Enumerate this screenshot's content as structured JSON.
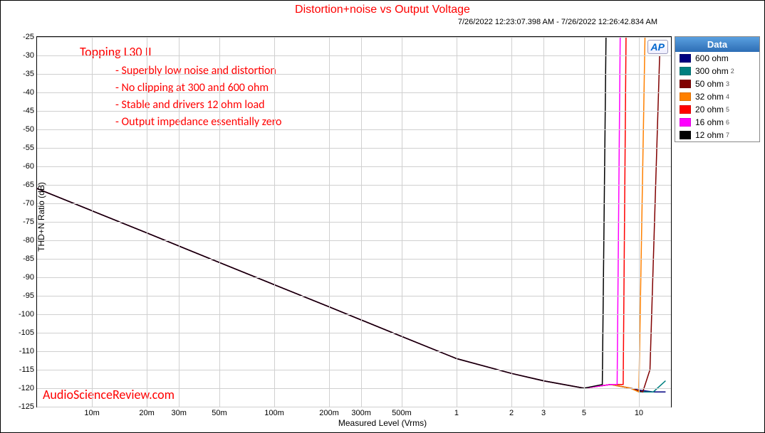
{
  "title": "Distortion+noise vs Output Voltage",
  "timestamp": "7/26/2022 12:23:07.398 AM - 7/26/2022 12:26:42.834 AM",
  "ap_logo": "AP",
  "y_label": "THD+N Ratio (dB)",
  "x_label": "Measured Level (Vrms)",
  "y_min": -125,
  "y_max": -25,
  "y_tick_step": 5,
  "x_min_log": -2.301,
  "x_max_log": 1.176,
  "x_ticks": [
    {
      "v": 0.01,
      "l": "10m"
    },
    {
      "v": 0.02,
      "l": "20m"
    },
    {
      "v": 0.03,
      "l": "30m"
    },
    {
      "v": 0.05,
      "l": "50m"
    },
    {
      "v": 0.1,
      "l": "100m"
    },
    {
      "v": 0.2,
      "l": "200m"
    },
    {
      "v": 0.3,
      "l": "300m"
    },
    {
      "v": 0.5,
      "l": "500m"
    },
    {
      "v": 1,
      "l": "1"
    },
    {
      "v": 2,
      "l": "2"
    },
    {
      "v": 3,
      "l": "3"
    },
    {
      "v": 5,
      "l": "5"
    },
    {
      "v": 10,
      "l": "10"
    }
  ],
  "grid_color": "#d0d0d0",
  "background_color": "#ffffff",
  "axis_color": "#000000",
  "annotation_color": "#ff0000",
  "annotations": {
    "heading": "Topping L30 II",
    "bullets": [
      "- Superbly low noise and distortion",
      "- No clipping at 300 and 600 ohm",
      "- Stable and drivers 12 ohm load",
      "- Output impedance essentially zero"
    ]
  },
  "watermark": "AudioScienceReview.com",
  "legend_header": "Data",
  "legend": [
    {
      "label": "600 ohm",
      "color": "#000080",
      "suffix": ""
    },
    {
      "label": "300 ohm",
      "color": "#008080",
      "suffix": "2"
    },
    {
      "label": "50 ohm",
      "color": "#800000",
      "suffix": "3"
    },
    {
      "label": "32 ohm",
      "color": "#ff8000",
      "suffix": "4"
    },
    {
      "label": "20 ohm",
      "color": "#ff0000",
      "suffix": "5"
    },
    {
      "label": "16 ohm",
      "color": "#ff00ff",
      "suffix": "6"
    },
    {
      "label": "12 ohm",
      "color": "#000000",
      "suffix": "7"
    }
  ],
  "series": [
    {
      "name": "600 ohm",
      "color": "#000080",
      "width": 1.5,
      "points": [
        [
          0.005,
          -66
        ],
        [
          0.01,
          -72
        ],
        [
          0.02,
          -78
        ],
        [
          0.05,
          -86
        ],
        [
          0.1,
          -92
        ],
        [
          0.2,
          -98
        ],
        [
          0.5,
          -106
        ],
        [
          1,
          -112
        ],
        [
          2,
          -116
        ],
        [
          3,
          -118
        ],
        [
          5,
          -120
        ],
        [
          7,
          -119
        ],
        [
          9,
          -120
        ],
        [
          10,
          -120.5
        ],
        [
          12,
          -121
        ],
        [
          14,
          -121
        ]
      ]
    },
    {
      "name": "300 ohm",
      "color": "#008080",
      "width": 1.5,
      "points": [
        [
          0.005,
          -66
        ],
        [
          0.01,
          -72
        ],
        [
          0.02,
          -78
        ],
        [
          0.05,
          -86
        ],
        [
          0.1,
          -92
        ],
        [
          0.2,
          -98
        ],
        [
          0.5,
          -106
        ],
        [
          1,
          -112
        ],
        [
          2,
          -116
        ],
        [
          3,
          -118
        ],
        [
          5,
          -120
        ],
        [
          7,
          -119
        ],
        [
          9,
          -120
        ],
        [
          10,
          -121
        ],
        [
          12,
          -121
        ],
        [
          14,
          -118
        ]
      ]
    },
    {
      "name": "50 ohm",
      "color": "#800000",
      "width": 1.5,
      "points": [
        [
          0.005,
          -66
        ],
        [
          0.01,
          -72
        ],
        [
          0.02,
          -78
        ],
        [
          0.05,
          -86
        ],
        [
          0.1,
          -92
        ],
        [
          0.2,
          -98
        ],
        [
          0.5,
          -106
        ],
        [
          1,
          -112
        ],
        [
          2,
          -116
        ],
        [
          3,
          -118
        ],
        [
          5,
          -120
        ],
        [
          7,
          -119
        ],
        [
          9,
          -120
        ],
        [
          10.5,
          -121
        ],
        [
          11.5,
          -115
        ],
        [
          13,
          -30
        ]
      ]
    },
    {
      "name": "32 ohm",
      "color": "#ff8000",
      "width": 1.5,
      "points": [
        [
          0.005,
          -66
        ],
        [
          0.01,
          -72
        ],
        [
          0.02,
          -78
        ],
        [
          0.05,
          -86
        ],
        [
          0.1,
          -92
        ],
        [
          0.2,
          -98
        ],
        [
          0.5,
          -106
        ],
        [
          1,
          -112
        ],
        [
          2,
          -116
        ],
        [
          3,
          -118
        ],
        [
          5,
          -120
        ],
        [
          7,
          -119
        ],
        [
          9,
          -120
        ],
        [
          10,
          -121
        ],
        [
          10.8,
          -25
        ]
      ]
    },
    {
      "name": "20 ohm",
      "color": "#ff0000",
      "width": 1.5,
      "points": [
        [
          0.005,
          -66
        ],
        [
          0.01,
          -72
        ],
        [
          0.02,
          -78
        ],
        [
          0.05,
          -86
        ],
        [
          0.1,
          -92
        ],
        [
          0.2,
          -98
        ],
        [
          0.5,
          -106
        ],
        [
          1,
          -112
        ],
        [
          2,
          -116
        ],
        [
          3,
          -118
        ],
        [
          5,
          -120
        ],
        [
          7,
          -119
        ],
        [
          8.2,
          -119
        ],
        [
          8.5,
          -25
        ]
      ]
    },
    {
      "name": "16 ohm",
      "color": "#ff00ff",
      "width": 1.5,
      "points": [
        [
          0.005,
          -66
        ],
        [
          0.01,
          -72
        ],
        [
          0.02,
          -78
        ],
        [
          0.05,
          -86
        ],
        [
          0.1,
          -92
        ],
        [
          0.2,
          -98
        ],
        [
          0.5,
          -106
        ],
        [
          1,
          -112
        ],
        [
          2,
          -116
        ],
        [
          3,
          -118
        ],
        [
          5,
          -120
        ],
        [
          7,
          -119
        ],
        [
          7.6,
          -119
        ],
        [
          7.9,
          -25
        ]
      ]
    },
    {
      "name": "12 ohm",
      "color": "#000000",
      "width": 1.5,
      "points": [
        [
          0.005,
          -66
        ],
        [
          0.01,
          -72
        ],
        [
          0.02,
          -78
        ],
        [
          0.05,
          -86
        ],
        [
          0.1,
          -92
        ],
        [
          0.2,
          -98
        ],
        [
          0.5,
          -106
        ],
        [
          1,
          -112
        ],
        [
          2,
          -116
        ],
        [
          3,
          -118
        ],
        [
          5,
          -120
        ],
        [
          6.3,
          -119
        ],
        [
          6.6,
          -25
        ]
      ]
    }
  ]
}
